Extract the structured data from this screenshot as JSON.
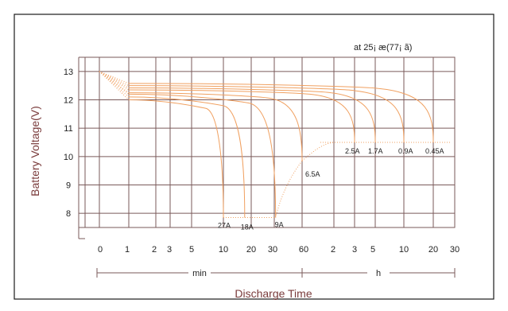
{
  "chart_data": {
    "type": "line",
    "title": "at 25¡ æ(77¡ ã)",
    "xlabel": "Discharge Time",
    "ylabel": "Battery Voltage(V)",
    "ylim": [
      7.5,
      13.5
    ],
    "y_ticks": [
      8,
      9,
      10,
      11,
      12,
      13
    ],
    "grid": true,
    "line_color": "#f0a060",
    "x_scale": "log",
    "x_unit_segments": [
      {
        "name": "min",
        "ticks": [
          "0",
          "1",
          "2",
          "3",
          "5",
          "10",
          "20",
          "30",
          "60"
        ]
      },
      {
        "name": "h",
        "ticks": [
          "2",
          "3",
          "5",
          "10",
          "20",
          "30"
        ]
      }
    ],
    "series": [
      {
        "name": "27A",
        "start_voltage": 12.0,
        "end_minutes": 10,
        "end_voltage": 7.85
      },
      {
        "name": "18A",
        "start_voltage": 12.1,
        "end_minutes": 17,
        "end_voltage": 7.85
      },
      {
        "name": "9A",
        "start_voltage": 12.2,
        "end_minutes": 31,
        "end_voltage": 7.85
      },
      {
        "name": "6.5A",
        "start_voltage": 12.25,
        "end_minutes": 60,
        "end_voltage": 9.85
      },
      {
        "name": "2.5A",
        "start_voltage": 12.35,
        "end_minutes": 180,
        "end_voltage": 10.5
      },
      {
        "name": "1.7A",
        "start_voltage": 12.42,
        "end_minutes": 300,
        "end_voltage": 10.5
      },
      {
        "name": "0.9A",
        "start_voltage": 12.5,
        "end_minutes": 600,
        "end_voltage": 10.5
      },
      {
        "name": "0.45A",
        "start_voltage": 12.58,
        "end_minutes": 1200,
        "end_voltage": 10.5
      }
    ]
  }
}
